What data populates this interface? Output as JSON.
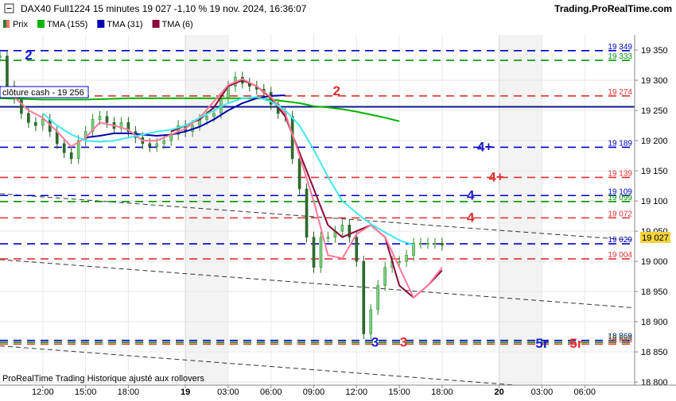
{
  "header": {
    "title": "DAX40 Full1224 15 minutes 19 027 -1,10 % 19 nov. 2024, 16:36:07",
    "site": "Trading.ProRealTime.com"
  },
  "legend": [
    {
      "label": "Prix",
      "color": "#2e7d32",
      "color2": "#ff6f6f"
    },
    {
      "label": "TMA (155)",
      "color": "#00b400"
    },
    {
      "label": "TMA (31)",
      "color": "#0000b4"
    },
    {
      "label": "TMA (6)",
      "color": "#8b0a3a"
    }
  ],
  "footer": "ProRealTime Trading  Historique ajusté aux rollovers",
  "cloture_label": "clôture cash -  19 256",
  "current_price": "19 027",
  "chart_data": {
    "type": "line",
    "title": "DAX40 Full1224 15 minutes",
    "y_ticks": [
      "18 800",
      "18 850",
      "18 900",
      "18 950",
      "19 000",
      "19 050",
      "19 100",
      "19 150",
      "19 200",
      "19 250",
      "19 300",
      "19 350"
    ],
    "y_values": [
      18800,
      18850,
      18900,
      18950,
      19000,
      19050,
      19100,
      19150,
      19200,
      19250,
      19300,
      19350
    ],
    "ylim": [
      18795,
      19375
    ],
    "x_ticks": [
      {
        "label": "12:00",
        "t": 3
      },
      {
        "label": "15:00",
        "t": 6
      },
      {
        "label": "18:00",
        "t": 9
      },
      {
        "label": "19",
        "t": 13,
        "bold": true
      },
      {
        "label": "03:00",
        "t": 16
      },
      {
        "label": "06:00",
        "t": 19
      },
      {
        "label": "09:00",
        "t": 22
      },
      {
        "label": "12:00",
        "t": 25
      },
      {
        "label": "15:00",
        "t": 28
      },
      {
        "label": "18:00",
        "t": 31
      },
      {
        "label": "20",
        "t": 35,
        "bold": true
      },
      {
        "label": "03:00",
        "t": 38
      },
      {
        "label": "06:00",
        "t": 41
      }
    ],
    "xlim": [
      0,
      44.5
    ],
    "weekend_shade": [
      [
        13,
        16
      ],
      [
        35,
        38
      ]
    ],
    "levels": [
      {
        "value": 19349,
        "label": "19 349",
        "color": "#0000c8",
        "dash": "10,7"
      },
      {
        "value": 19333,
        "label": "19 333",
        "color": "#009600",
        "dash": "10,7"
      },
      {
        "value": 19274,
        "label": "19 274",
        "color": "#e03030",
        "dash": "10,7"
      },
      {
        "value": 19189,
        "label": "19 189",
        "color": "#0000c8",
        "dash": "10,7"
      },
      {
        "value": 19139,
        "label": "19 139",
        "color": "#e03030",
        "dash": "10,7"
      },
      {
        "value": 19109,
        "label": "19 109",
        "color": "#0000c8",
        "dash": "10,7"
      },
      {
        "value": 19099,
        "label": "19 099",
        "color": "#009600",
        "dash": "10,7"
      },
      {
        "value": 19072,
        "label": "19 072",
        "color": "#e03030",
        "dash": "10,7"
      },
      {
        "value": 19029,
        "label": "19 029",
        "color": "#0000c8",
        "dash": "10,7"
      },
      {
        "value": 19004,
        "label": "19 004",
        "color": "#e03030",
        "dash": "10,7"
      },
      {
        "value": 18869,
        "label": "18 869",
        "color": "#0000c8",
        "dash": "10,7"
      },
      {
        "value": 18866,
        "label": "18 866",
        "color": "#009600",
        "dash": "10,7"
      },
      {
        "value": 18863,
        "label": "18 863",
        "color": "#e03030",
        "dash": "10,7"
      }
    ],
    "cloture_cash": 19256,
    "trendlines": [
      [
        [
          0,
          19112
        ],
        [
          44.5,
          19035
        ]
      ],
      [
        [
          0,
          19003
        ],
        [
          44.5,
          18923
        ]
      ],
      [
        [
          0,
          18860
        ],
        [
          44.5,
          18780
        ]
      ]
    ],
    "annotations": [
      {
        "text": "2",
        "t": 2,
        "y": 19342,
        "color": "#1a1acc"
      },
      {
        "text": "2",
        "t": 23.6,
        "y": 19283,
        "color": "#e03030"
      },
      {
        "text": "4+",
        "t": 34,
        "y": 19190,
        "color": "#1a1acc"
      },
      {
        "text": "4+",
        "t": 34.8,
        "y": 19140,
        "color": "#e03030"
      },
      {
        "text": "4",
        "t": 33,
        "y": 19110,
        "color": "#1a1acc"
      },
      {
        "text": "4",
        "t": 33,
        "y": 19073,
        "color": "#e03030"
      },
      {
        "text": "3",
        "t": 26.3,
        "y": 18867,
        "color": "#1a1acc"
      },
      {
        "text": "3",
        "t": 28.3,
        "y": 18867,
        "color": "#e03030"
      },
      {
        "text": "5r",
        "t": 38,
        "y": 18865,
        "color": "#1a1acc"
      },
      {
        "text": "5r",
        "t": 40.4,
        "y": 18865,
        "color": "#e03030"
      }
    ],
    "price": {
      "t": [
        0,
        0.5,
        1,
        1.5,
        2,
        2.5,
        3,
        3.5,
        4,
        4.5,
        5,
        5.5,
        6,
        6.5,
        7,
        7.5,
        8,
        8.5,
        9,
        9.5,
        10,
        10.5,
        11,
        11.5,
        12,
        12.5,
        13,
        13.5,
        14,
        14.5,
        15,
        15.5,
        16,
        16.5,
        17,
        17.5,
        18,
        18.5,
        19,
        19.5,
        20,
        20.5,
        21,
        21.5,
        22,
        22.5,
        23,
        23.5,
        24,
        24.5,
        25,
        25.5,
        26,
        26.5,
        27,
        27.5,
        28,
        28.5,
        29,
        29.5,
        30,
        30.5,
        31
      ],
      "y": [
        19340,
        19290,
        19270,
        19245,
        19230,
        19225,
        19235,
        19215,
        19195,
        19180,
        19170,
        19200,
        19215,
        19235,
        19240,
        19230,
        19220,
        19230,
        19215,
        19205,
        19195,
        19190,
        19195,
        19200,
        19210,
        19225,
        19215,
        19225,
        19235,
        19240,
        19245,
        19270,
        19290,
        19305,
        19295,
        19290,
        19285,
        19280,
        19260,
        19245,
        19240,
        19170,
        19120,
        19040,
        18990,
        19040,
        19040,
        19050,
        19060,
        19040,
        19000,
        18880,
        18920,
        18960,
        18990,
        19000,
        19000,
        19010,
        19030,
        19030,
        19030,
        19030,
        19027
      ]
    },
    "series": [
      {
        "name": "TMA (155)",
        "color": "#00b400",
        "t": [
          0,
          3,
          6,
          9,
          12,
          15,
          18,
          19,
          20,
          21,
          22,
          23,
          24,
          25,
          26,
          27,
          28
        ],
        "y": [
          19270,
          19268,
          19268,
          19270,
          19270,
          19270,
          19270,
          19268,
          19265,
          19262,
          19257,
          19255,
          19252,
          19248,
          19243,
          19238,
          19232
        ]
      },
      {
        "name": "TMA (31)",
        "color": "#0000b4",
        "t": [
          6,
          7,
          8,
          9,
          10,
          11,
          12,
          13,
          14,
          15,
          16,
          17,
          18,
          19,
          20
        ],
        "y": [
          19205,
          19208,
          19212,
          19212,
          19210,
          19208,
          19210,
          19215,
          19223,
          19235,
          19250,
          19262,
          19270,
          19274,
          19275
        ]
      },
      {
        "name": "TMA (6)",
        "color": "#8b0a3a",
        "t": [
          12,
          13,
          14,
          15,
          16,
          17,
          18,
          19,
          20,
          21,
          22,
          23,
          24,
          25,
          26,
          27,
          28,
          29,
          30,
          31
        ],
        "y": [
          19215,
          19225,
          19235,
          19255,
          19290,
          19300,
          19290,
          19270,
          19240,
          19180,
          19120,
          19060,
          19040,
          19050,
          19060,
          19040,
          18960,
          18940,
          18960,
          18985
        ]
      },
      {
        "name": "pink",
        "color": "#ff7a9a",
        "t": [
          0,
          1,
          2,
          3,
          4,
          5,
          6,
          7,
          8,
          9,
          10,
          11,
          12,
          13,
          14,
          15,
          16,
          17,
          18,
          19,
          20,
          21,
          22,
          23,
          24,
          25,
          26,
          27,
          28,
          29,
          30,
          31
        ],
        "y": [
          19290,
          19272,
          19250,
          19238,
          19215,
          19190,
          19205,
          19230,
          19225,
          19218,
          19200,
          19200,
          19210,
          19220,
          19238,
          19265,
          19292,
          19302,
          19290,
          19272,
          19245,
          19175,
          19100,
          19010,
          19005,
          19045,
          19060,
          19040,
          18990,
          18940,
          18960,
          18990
        ]
      },
      {
        "name": "cyan",
        "color": "#40e8f0",
        "t": [
          3,
          4,
          5,
          6,
          7,
          8,
          9,
          10,
          11,
          12,
          13,
          14,
          15,
          16,
          17,
          18,
          19,
          20,
          21,
          22,
          23,
          24,
          25,
          26,
          27,
          28,
          29
        ],
        "y": [
          19245,
          19225,
          19210,
          19200,
          19198,
          19200,
          19205,
          19210,
          19215,
          19218,
          19225,
          19238,
          19250,
          19262,
          19270,
          19272,
          19265,
          19250,
          19225,
          19185,
          19140,
          19100,
          19080,
          19062,
          19048,
          19035,
          19027
        ]
      }
    ]
  }
}
